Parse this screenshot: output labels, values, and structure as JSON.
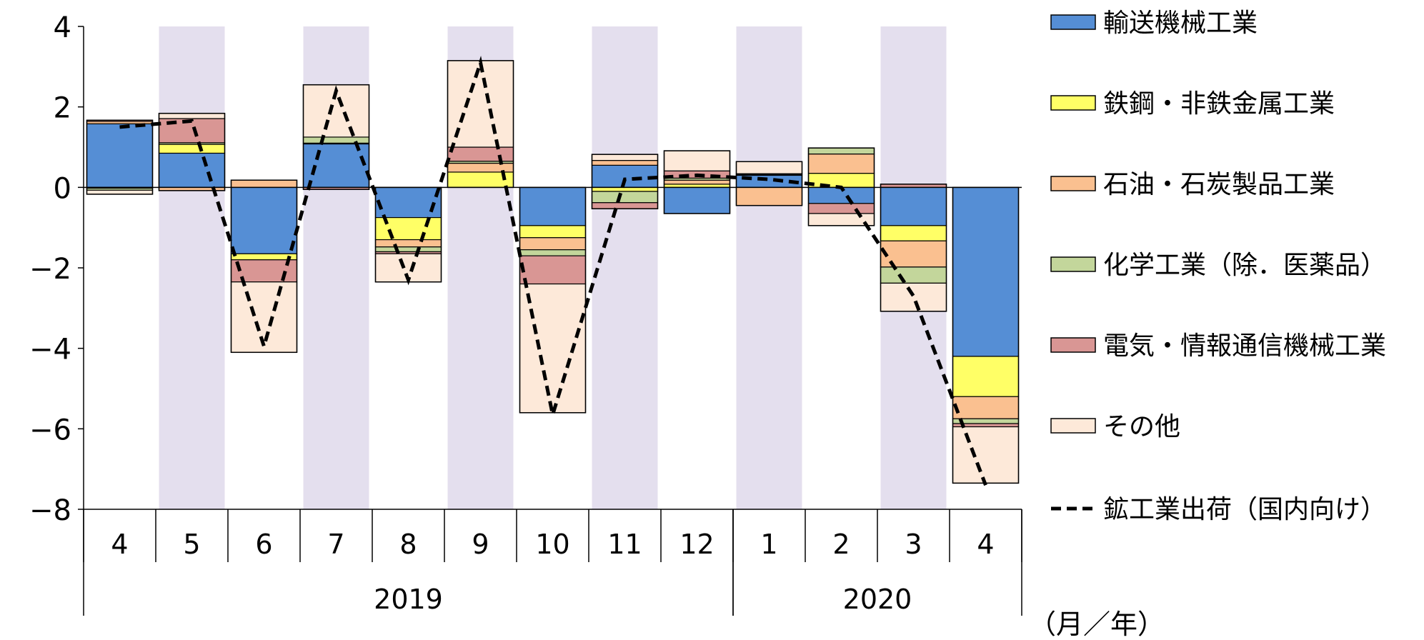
{
  "chart_data": {
    "type": "bar",
    "stacked": true,
    "categories": [
      "4",
      "5",
      "6",
      "7",
      "8",
      "9",
      "10",
      "11",
      "12",
      "1",
      "2",
      "3",
      "4"
    ],
    "year_groups": [
      {
        "label": "2019",
        "start": 0,
        "end": 8
      },
      {
        "label": "2020",
        "start": 9,
        "end": 12
      }
    ],
    "axis_unit_label": "（月／年）",
    "ylim": [
      -8,
      4
    ],
    "yticks": [
      4,
      2,
      0,
      -2,
      -4,
      -6,
      -8
    ],
    "ytick_labels": [
      "4",
      "2",
      "0",
      "−2",
      "−4",
      "−6",
      "−8"
    ],
    "shaded_categories": [
      1,
      3,
      5,
      7,
      9,
      11
    ],
    "shade_color": "#e4dfee",
    "series": [
      {
        "name": "輸送機械工業",
        "color": "#558ed5",
        "values": [
          1.58,
          0.85,
          -1.65,
          1.08,
          -0.75,
          0.0,
          -0.95,
          0.55,
          -0.65,
          0.3,
          -0.4,
          -0.95,
          -4.2
        ]
      },
      {
        "name": "鉄鋼・非鉄金属工業",
        "color": "#ffff66",
        "values": [
          -0.02,
          0.22,
          -0.15,
          0.0,
          -0.55,
          0.38,
          -0.3,
          -0.1,
          0.08,
          0.02,
          0.35,
          -0.38,
          -1.0
        ]
      },
      {
        "name": "石油・石炭製品工業",
        "color": "#fac090",
        "values": [
          0.06,
          -0.08,
          0.18,
          0.02,
          -0.18,
          0.22,
          -0.3,
          0.12,
          0.1,
          -0.45,
          0.48,
          -0.65,
          -0.55
        ]
      },
      {
        "name": "化学工業（除．医薬品）",
        "color": "#c3d69b",
        "values": [
          -0.05,
          0.04,
          0.0,
          0.15,
          -0.12,
          0.05,
          -0.15,
          -0.28,
          0.05,
          0.02,
          0.15,
          -0.4,
          -0.12
        ]
      },
      {
        "name": "電気・情報通信機械工業",
        "color": "#d99694",
        "values": [
          0.03,
          0.6,
          -0.55,
          -0.05,
          -0.05,
          0.35,
          -0.7,
          -0.15,
          0.18,
          0.0,
          -0.25,
          0.08,
          -0.08
        ]
      },
      {
        "name": "その他",
        "color": "#fde9d9",
        "values": [
          -0.1,
          0.13,
          -1.75,
          1.3,
          -0.7,
          2.15,
          -3.2,
          0.15,
          0.5,
          0.3,
          -0.3,
          -0.7,
          -1.4
        ]
      }
    ],
    "line": {
      "name": "鉱工業出荷（国内向け）",
      "style": "dashed",
      "color": "#000000",
      "values": [
        1.5,
        1.65,
        -3.95,
        2.4,
        -2.3,
        3.1,
        -5.65,
        0.2,
        0.3,
        0.2,
        0.0,
        -2.7,
        -7.4
      ]
    },
    "legend_position": "right"
  }
}
